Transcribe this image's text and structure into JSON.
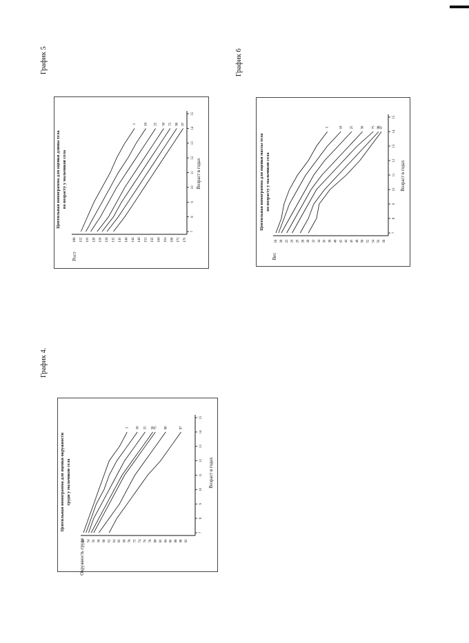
{
  "page_labels": {
    "grafik4": "График 4.",
    "grafik5": "График 5",
    "grafik6": "График 6"
  },
  "chart_data": [
    {
      "id": "chart4",
      "type": "line",
      "title": "Центильная номограмма для оценки окружности груди у мальчиков села",
      "xlabel": "Возраст в годах",
      "ylabel": "Окружность груди",
      "x": [
        7,
        8,
        9,
        10,
        11,
        12,
        13,
        14,
        15
      ],
      "xlim": [
        7,
        15
      ],
      "yticks": [
        52,
        54,
        56,
        58,
        60,
        62,
        64,
        66,
        68,
        70,
        72,
        74,
        76,
        78,
        80,
        82,
        84,
        86,
        88,
        90,
        92
      ],
      "ylim": [
        52,
        92
      ],
      "series": [
        {
          "name": "97",
          "x": [
            7,
            8,
            9,
            10,
            11,
            12,
            13,
            14
          ],
          "values": [
            62,
            65,
            69,
            73,
            77,
            82,
            86,
            90
          ]
        },
        {
          "name": "90",
          "x": [
            7,
            8,
            9,
            10,
            11,
            12,
            13,
            14
          ],
          "values": [
            58,
            62,
            66,
            69,
            72,
            76,
            80,
            84
          ]
        },
        {
          "name": "75",
          "x": [
            7,
            8,
            9,
            10,
            11,
            12,
            13,
            14
          ],
          "values": [
            56,
            59,
            62,
            65,
            68,
            72,
            76,
            80
          ]
        },
        {
          "name": "50",
          "x": [
            7,
            8,
            9,
            10,
            11,
            12,
            13,
            14
          ],
          "values": [
            55,
            58,
            61,
            64,
            67,
            71,
            75,
            79
          ]
        },
        {
          "name": "25",
          "x": [
            7,
            8,
            9,
            10,
            11,
            12,
            13,
            14
          ],
          "values": [
            54,
            56,
            59,
            62,
            65,
            68,
            72,
            76
          ]
        },
        {
          "name": "10",
          "x": [
            7,
            8,
            9,
            10,
            11,
            12,
            13,
            14
          ],
          "values": [
            53,
            55,
            57,
            60,
            62,
            65,
            69,
            73
          ]
        },
        {
          "name": "3",
          "x": [
            7,
            8,
            9,
            10,
            11,
            12,
            13,
            14
          ],
          "values": [
            52,
            54,
            56,
            58,
            60,
            62,
            66,
            69
          ]
        }
      ]
    },
    {
      "id": "chart5",
      "type": "line",
      "title": "Центильная номограмма для оценки длины тела по возрасту у мальчиков села",
      "xlabel": "Возраст в годах",
      "ylabel": "Рост",
      "x": [
        7,
        8,
        9,
        10,
        11,
        12,
        13,
        14,
        15
      ],
      "xlim": [
        7,
        15
      ],
      "yticks": [
        108,
        112,
        116,
        120,
        124,
        128,
        132,
        136,
        140,
        144,
        148,
        152,
        156,
        160,
        164,
        168,
        172,
        176
      ],
      "ylim": [
        108,
        176
      ],
      "series": [
        {
          "name": "97",
          "x": [
            7,
            8,
            9,
            10,
            11,
            12,
            13,
            14
          ],
          "values": [
            132,
            139,
            145,
            151,
            157,
            163,
            169,
            175
          ]
        },
        {
          "name": "90",
          "x": [
            7,
            8,
            9,
            10,
            11,
            12,
            13,
            14
          ],
          "values": [
            128,
            135,
            141,
            147,
            153,
            159,
            165,
            171
          ]
        },
        {
          "name": "75",
          "x": [
            7,
            8,
            9,
            10,
            11,
            12,
            13,
            14
          ],
          "values": [
            125,
            132,
            137,
            143,
            149,
            155,
            161,
            167
          ]
        },
        {
          "name": "50",
          "x": [
            7,
            8,
            9,
            10,
            11,
            12,
            13,
            14
          ],
          "values": [
            122,
            129,
            134,
            139,
            145,
            151,
            157,
            163
          ]
        },
        {
          "name": "25",
          "x": [
            7,
            8,
            9,
            10,
            11,
            12,
            13,
            14
          ],
          "values": [
            118,
            124,
            129,
            134,
            140,
            146,
            152,
            158
          ]
        },
        {
          "name": "10",
          "x": [
            7,
            8,
            9,
            10,
            11,
            12,
            13,
            14
          ],
          "values": [
            115,
            120,
            125,
            130,
            135,
            141,
            146,
            152
          ]
        },
        {
          "name": "3",
          "x": [
            7,
            8,
            9,
            10,
            11,
            12,
            13,
            14
          ],
          "values": [
            112,
            116,
            120,
            125,
            130,
            134,
            139,
            145
          ]
        }
      ]
    },
    {
      "id": "chart6",
      "type": "line",
      "title": "Центильная номограмма для оценки массы тела по возрасту у мальчиков села",
      "xlabel": "Возраст в годах",
      "ylabel": "Вес",
      "x": [
        7,
        8,
        9,
        10,
        11,
        12,
        13,
        14,
        15
      ],
      "xlim": [
        7,
        15
      ],
      "yticks": [
        18,
        20,
        22,
        24,
        26,
        28,
        30,
        32,
        34,
        36,
        38,
        40,
        42,
        44,
        46,
        48,
        50,
        52,
        54,
        56,
        58
      ],
      "ylim": [
        18,
        58
      ],
      "series": [
        {
          "name": "97",
          "x": [
            7,
            8,
            9,
            10,
            11,
            12,
            13,
            14
          ],
          "values": [
            30,
            33,
            34,
            38,
            44,
            49,
            53,
            57
          ]
        },
        {
          "name": "90",
          "x": [
            7,
            8,
            9,
            10,
            11,
            12,
            13,
            14
          ],
          "values": [
            27,
            30,
            32,
            36,
            41,
            46,
            51,
            56
          ]
        },
        {
          "name": "75",
          "x": [
            7,
            8,
            9,
            10,
            11,
            12,
            13,
            14
          ],
          "values": [
            24,
            27,
            30,
            33,
            38,
            43,
            48,
            54
          ]
        },
        {
          "name": "50",
          "x": [
            7,
            8,
            9,
            10,
            11,
            12,
            13,
            14
          ],
          "values": [
            22,
            25,
            28,
            31,
            35,
            40,
            45,
            50
          ]
        },
        {
          "name": "25",
          "x": [
            7,
            8,
            9,
            10,
            11,
            12,
            13,
            14
          ],
          "values": [
            20,
            23,
            26,
            29,
            32,
            36,
            41,
            46
          ]
        },
        {
          "name": "10",
          "x": [
            7,
            8,
            9,
            10,
            11,
            12,
            13,
            14
          ],
          "values": [
            19,
            21,
            23,
            26,
            29,
            33,
            37,
            42
          ]
        },
        {
          "name": "3",
          "x": [
            7,
            8,
            9,
            10,
            11,
            12,
            13,
            14
          ],
          "values": [
            18,
            20,
            21,
            23,
            26,
            30,
            33,
            37
          ]
        }
      ]
    }
  ]
}
